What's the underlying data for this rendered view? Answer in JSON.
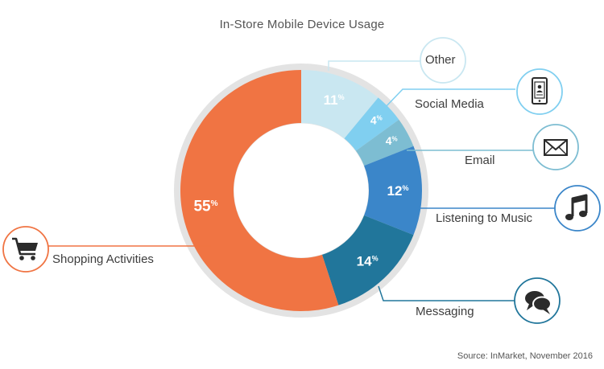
{
  "chart_data": {
    "type": "pie",
    "variant": "donut",
    "title": "In-Store Mobile Device Usage",
    "slices": [
      {
        "label": "Other",
        "value": 11,
        "color": "#c9e7f1",
        "icon": ""
      },
      {
        "label": "Social Media",
        "value": 4,
        "color": "#80cff0",
        "icon": "smartphone-icon"
      },
      {
        "label": "Email",
        "value": 4,
        "color": "#7dbdd2",
        "icon": "envelope-icon"
      },
      {
        "label": "Listening to Music",
        "value": 12,
        "color": "#3b86c9",
        "icon": "music-note-icon"
      },
      {
        "label": "Messaging",
        "value": 14,
        "color": "#21769b",
        "icon": "chat-bubbles-icon"
      },
      {
        "label": "Shopping Activities",
        "value": 55,
        "color": "#f07443",
        "icon": "shopping-cart-icon"
      }
    ],
    "value_suffix": "%",
    "source": "Source:  InMarket, November 2016"
  }
}
